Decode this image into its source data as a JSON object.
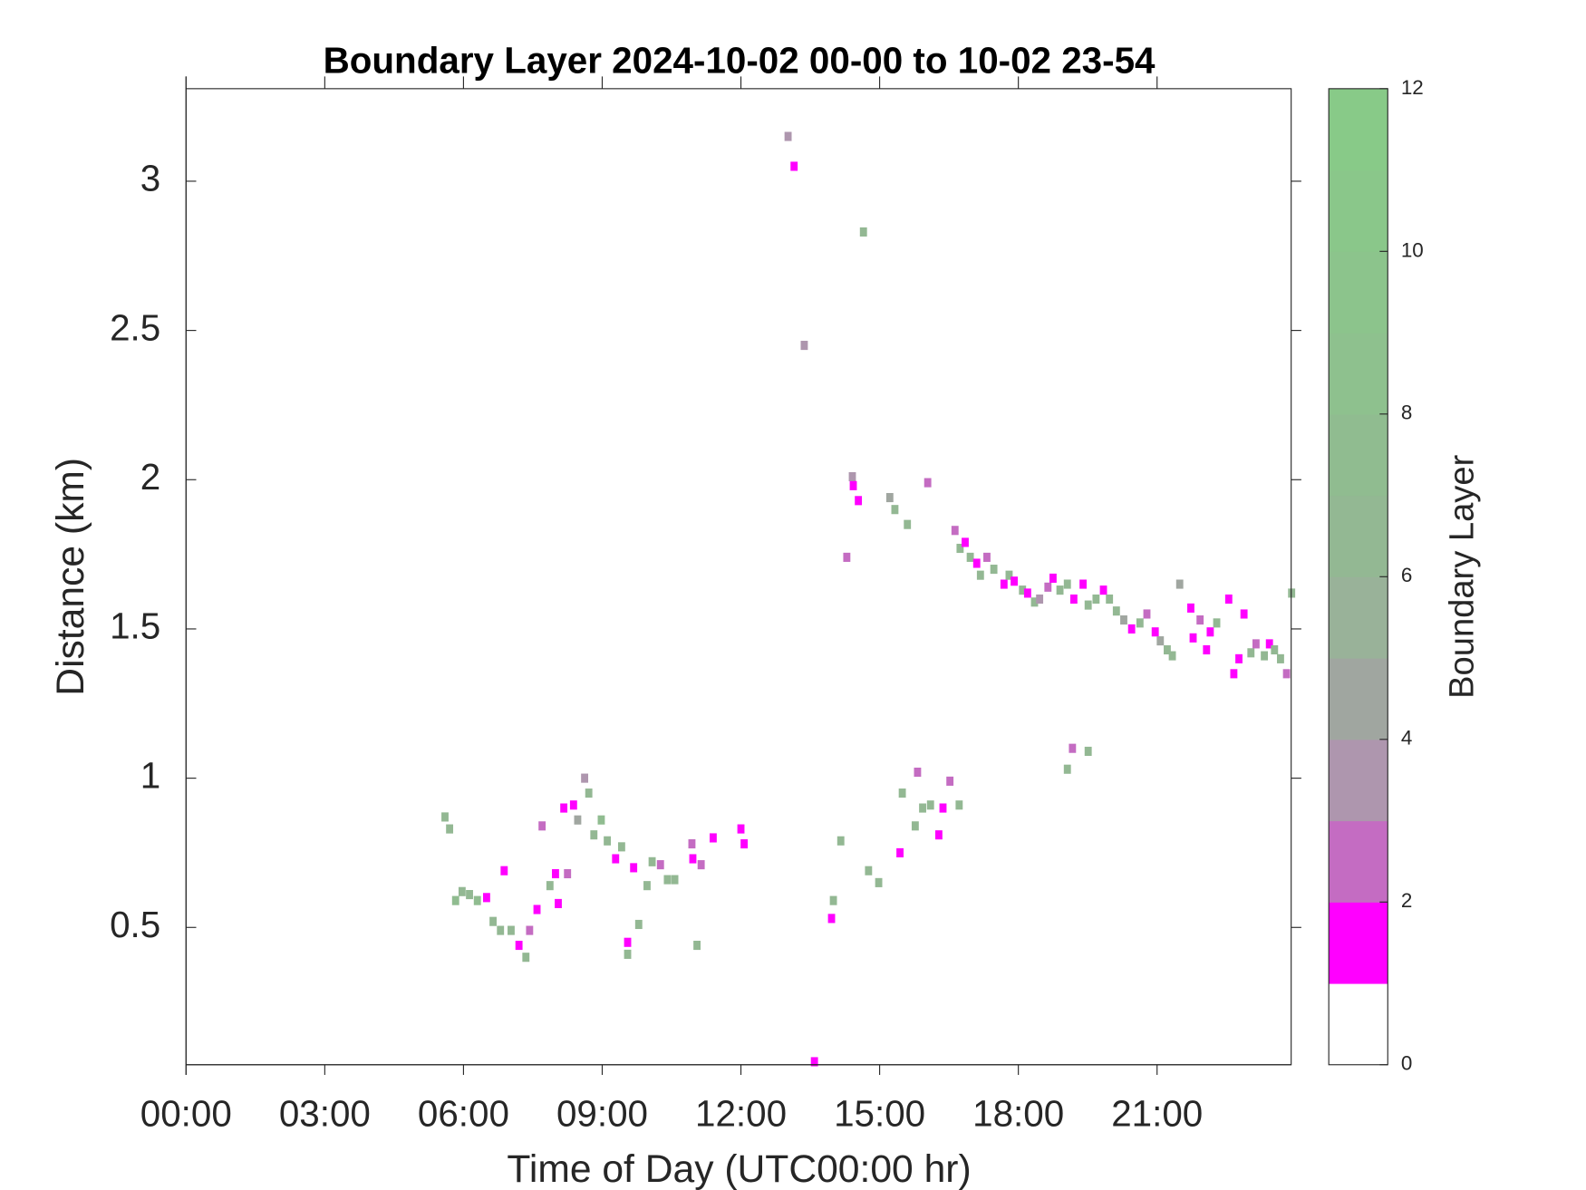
{
  "chart_data": {
    "type": "heatmap",
    "title": "Boundary Layer 2024-10-02 00-00 to 10-02 23-54",
    "x_label": "Time of Day (UTC00:00 hr)",
    "y_label": "Distance (km)",
    "colorbar_label": "Boundary Layer",
    "xlim": [
      0,
      23.9
    ],
    "ylim": [
      0.04,
      3.31
    ],
    "xticks": [
      {
        "value": 0,
        "label": "00:00"
      },
      {
        "value": 3,
        "label": "03:00"
      },
      {
        "value": 6,
        "label": "06:00"
      },
      {
        "value": 9,
        "label": "09:00"
      },
      {
        "value": 12,
        "label": "12:00"
      },
      {
        "value": 15,
        "label": "15:00"
      },
      {
        "value": 18,
        "label": "18:00"
      },
      {
        "value": 21,
        "label": "21:00"
      }
    ],
    "yticks": [
      0.5,
      1,
      1.5,
      2,
      2.5,
      3
    ],
    "clim": [
      0,
      12
    ],
    "cticks": [
      0,
      2,
      4,
      6,
      8,
      10,
      12
    ],
    "colormap": [
      "#ffffff",
      "#ff00ff",
      "#c46cc2",
      "#ae96ae",
      "#a0a6a0",
      "#99b299",
      "#93b893",
      "#90bc90",
      "#8ec18e",
      "#8cc48c",
      "#8ac78a",
      "#88ca88"
    ],
    "x": [
      5.6,
      5.7,
      5.83,
      5.97,
      6.13,
      6.3,
      6.5,
      6.64,
      6.8,
      6.88,
      7.03,
      7.2,
      7.35,
      7.43,
      7.59,
      7.7,
      7.87,
      7.99,
      8.05,
      8.17,
      8.25,
      8.38,
      8.47,
      8.62,
      8.71,
      8.82,
      8.98,
      9.11,
      9.29,
      9.42,
      9.55,
      9.55,
      9.68,
      9.79,
      9.97,
      10.08,
      10.26,
      10.41,
      10.57,
      10.94,
      10.96,
      11.05,
      11.14,
      11.4,
      12.0,
      12.07,
      13.02,
      13.15,
      13.37,
      13.59,
      13.96,
      14.0,
      14.16,
      14.29,
      14.41,
      14.43,
      14.54,
      14.65,
      14.76,
      14.98,
      15.22,
      15.33,
      15.44,
      15.49,
      15.6,
      15.77,
      15.82,
      15.93,
      16.04,
      16.1,
      16.28,
      16.37,
      16.52,
      16.72,
      16.63,
      16.74,
      16.85,
      16.96,
      17.1,
      17.18,
      17.32,
      17.47,
      17.69,
      17.8,
      17.91,
      18.09,
      18.2,
      18.35,
      18.46,
      18.64,
      18.75,
      18.9,
      19.06,
      19.2,
      19.4,
      19.51,
      19.68,
      19.84,
      19.97,
      20.12,
      20.28,
      20.45,
      20.63,
      20.78,
      20.96,
      21.07,
      21.22,
      21.33,
      21.49,
      21.73,
      21.78,
      21.93,
      22.07,
      22.15,
      22.29,
      22.55,
      22.66,
      22.77,
      22.88,
      23.03,
      23.14,
      23.32,
      23.43,
      23.54,
      23.67,
      23.8,
      23.91,
      19.06,
      19.17,
      19.51
    ],
    "y": [
      0.87,
      0.83,
      0.59,
      0.62,
      0.61,
      0.59,
      0.6,
      0.52,
      0.49,
      0.69,
      0.49,
      0.44,
      0.4,
      0.49,
      0.56,
      0.84,
      0.64,
      0.68,
      0.58,
      0.9,
      0.68,
      0.91,
      0.86,
      1.0,
      0.95,
      0.81,
      0.86,
      0.79,
      0.73,
      0.77,
      0.45,
      0.41,
      0.7,
      0.51,
      0.64,
      0.72,
      0.71,
      0.66,
      0.66,
      0.78,
      0.73,
      0.44,
      0.71,
      0.8,
      0.83,
      0.78,
      3.15,
      3.05,
      2.45,
      0.05,
      0.53,
      0.59,
      0.79,
      1.74,
      2.01,
      1.98,
      1.93,
      2.83,
      0.69,
      0.65,
      1.94,
      1.9,
      0.75,
      0.95,
      1.85,
      0.84,
      1.02,
      0.9,
      1.99,
      0.91,
      0.81,
      0.9,
      0.99,
      0.91,
      1.83,
      1.77,
      1.79,
      1.74,
      1.72,
      1.68,
      1.74,
      1.7,
      1.65,
      1.68,
      1.66,
      1.63,
      1.62,
      1.59,
      1.6,
      1.64,
      1.67,
      1.63,
      1.65,
      1.6,
      1.65,
      1.58,
      1.6,
      1.63,
      1.6,
      1.56,
      1.53,
      1.5,
      1.52,
      1.55,
      1.49,
      1.46,
      1.43,
      1.41,
      1.65,
      1.57,
      1.47,
      1.53,
      1.43,
      1.49,
      1.52,
      1.6,
      1.35,
      1.4,
      1.55,
      1.42,
      1.45,
      1.41,
      1.45,
      1.43,
      1.4,
      1.35,
      1.62,
      1.03,
      1.1,
      1.09
    ],
    "values": [
      6,
      6,
      7,
      6,
      6,
      7,
      1,
      6,
      6,
      1,
      6,
      1,
      6,
      2,
      1,
      2,
      6,
      1,
      1,
      1,
      2,
      1,
      4,
      3,
      6,
      6,
      7,
      6,
      1,
      6,
      1,
      6,
      1,
      6,
      6,
      6,
      2,
      6,
      6,
      2,
      1,
      6,
      2,
      1,
      1,
      1,
      3,
      1,
      3,
      1,
      1,
      6,
      6,
      2,
      3,
      1,
      1,
      6,
      6,
      6,
      4,
      6,
      1,
      6,
      6,
      6,
      2,
      6,
      2,
      6,
      1,
      1,
      2,
      6,
      2,
      6,
      1,
      6,
      1,
      6,
      2,
      6,
      1,
      6,
      1,
      6,
      1,
      6,
      3,
      2,
      1,
      6,
      6,
      1,
      1,
      6,
      6,
      1,
      6,
      6,
      4,
      1,
      6,
      2,
      1,
      4,
      6,
      6,
      4,
      1,
      1,
      2,
      1,
      1,
      6,
      1,
      1,
      1,
      1,
      6,
      2,
      6,
      1,
      6,
      6,
      2,
      6,
      6,
      2,
      6
    ]
  }
}
